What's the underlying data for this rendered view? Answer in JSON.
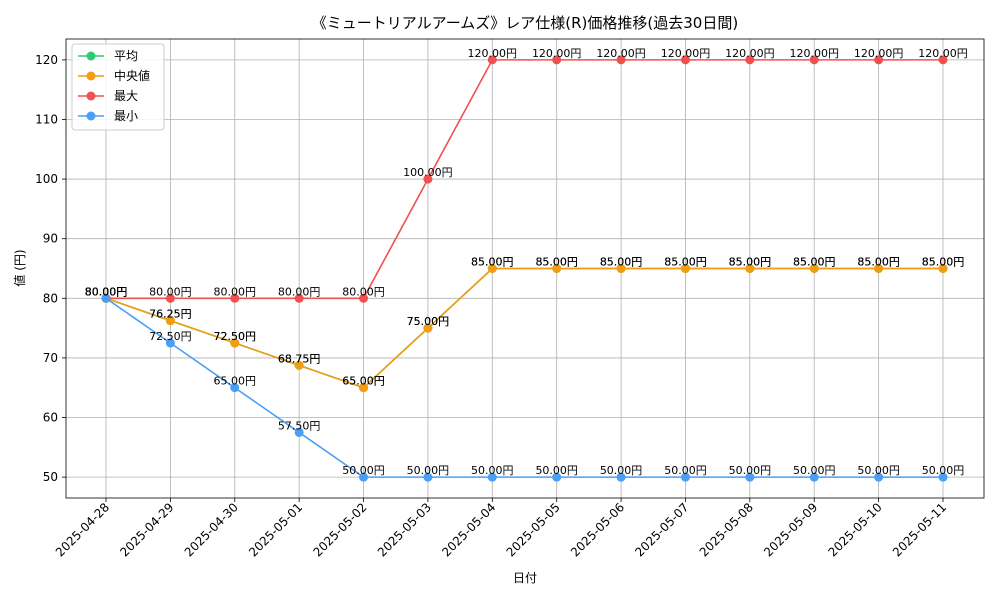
{
  "chart_data": {
    "type": "line",
    "title": "《ミュートリアルアームズ》レア仕様(R)価格推移(過去30日間)",
    "xlabel": "日付",
    "ylabel": "値 (円)",
    "ylim": [
      46.5,
      123.5
    ],
    "yticks": [
      50,
      60,
      70,
      80,
      90,
      100,
      110,
      120
    ],
    "grid": true,
    "legend_position": "top-left",
    "value_suffix": "円",
    "categories": [
      "2025-04-28",
      "2025-04-29",
      "2025-04-30",
      "2025-05-01",
      "2025-05-02",
      "2025-05-03",
      "2025-05-04",
      "2025-05-05",
      "2025-05-06",
      "2025-05-07",
      "2025-05-08",
      "2025-05-09",
      "2025-05-10",
      "2025-05-11"
    ],
    "series": [
      {
        "name": "平均",
        "color": "#2ecc71",
        "values": [
          80,
          76.25,
          72.5,
          68.75,
          65,
          75,
          85,
          85,
          85,
          85,
          85,
          85,
          85,
          85
        ]
      },
      {
        "name": "中央値",
        "color": "#f39c12",
        "values": [
          80,
          76.25,
          72.5,
          68.75,
          65,
          75,
          85,
          85,
          85,
          85,
          85,
          85,
          85,
          85
        ]
      },
      {
        "name": "最大",
        "color": "#f05050",
        "values": [
          80,
          80,
          80,
          80,
          80,
          100,
          120,
          120,
          120,
          120,
          120,
          120,
          120,
          120
        ]
      },
      {
        "name": "最小",
        "color": "#4a9ff5",
        "values": [
          80,
          72.5,
          65,
          57.5,
          50,
          50,
          50,
          50,
          50,
          50,
          50,
          50,
          50,
          50
        ]
      }
    ]
  }
}
